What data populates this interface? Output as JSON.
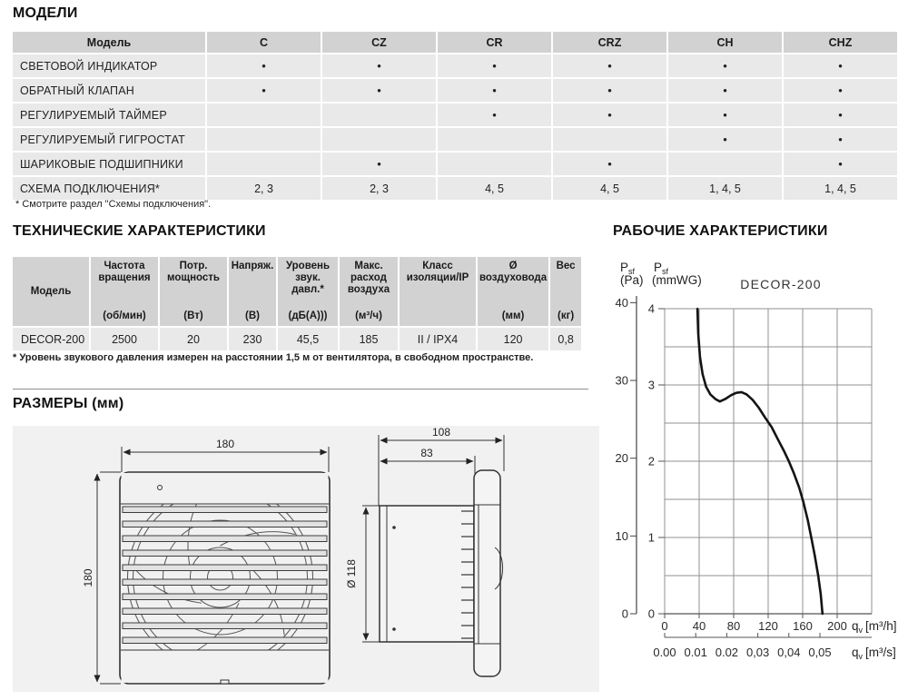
{
  "sections": {
    "models_title": "МОДЕЛИ",
    "tech_title": "ТЕХНИЧЕСКИЕ ХАРАКТЕРИСТИКИ",
    "dims_title": "РАЗМЕРЫ (мм)",
    "work_title": "РАБОЧИЕ ХАРАКТЕРИСТИКИ"
  },
  "models_table": {
    "header": [
      "Модель",
      "C",
      "CZ",
      "CR",
      "CRZ",
      "CH",
      "CHZ"
    ],
    "rows": [
      {
        "label": "СВЕТОВОЙ ИНДИКАТОР",
        "cells": [
          "•",
          "•",
          "•",
          "•",
          "•",
          "•"
        ]
      },
      {
        "label": "ОБРАТНЫЙ КЛАПАН",
        "cells": [
          "•",
          "•",
          "•",
          "•",
          "•",
          "•"
        ]
      },
      {
        "label": "РЕГУЛИРУЕМЫЙ ТАЙМЕР",
        "cells": [
          "",
          "",
          "•",
          "•",
          "•",
          "•"
        ]
      },
      {
        "label": "РЕГУЛИРУЕМЫЙ ГИГРОСТАТ",
        "cells": [
          "",
          "",
          "",
          "",
          "•",
          "•"
        ]
      },
      {
        "label": "ШАРИКОВЫЕ ПОДШИПНИКИ",
        "cells": [
          "",
          "•",
          "",
          "•",
          "",
          "•"
        ]
      },
      {
        "label": "СХЕМА ПОДКЛЮЧЕНИЯ*",
        "cells": [
          "2, 3",
          "2, 3",
          "4, 5",
          "4, 5",
          "1, 4, 5",
          "1, 4, 5"
        ]
      }
    ]
  },
  "notes": {
    "models": "* Смотрите раздел \"Схемы подключения\".",
    "tech": "* Уровень звукового давления измерен на расстоянии 1,5 м от вентилятора, в свободном пространстве."
  },
  "tech_table": {
    "columns": [
      {
        "name": "Модель",
        "unit": ""
      },
      {
        "name": "Частота вращения",
        "unit": "(об/мин)"
      },
      {
        "name": "Потр. мощность",
        "unit": "(Вт)"
      },
      {
        "name": "Напряж.",
        "unit": "(В)"
      },
      {
        "name": "Уровень звук. давл.*",
        "unit": "(дБ(А)))"
      },
      {
        "name": "Макс. расход воздуха",
        "unit": "(м³/ч)"
      },
      {
        "name": "Класс изоляции/IP",
        "unit": ""
      },
      {
        "name": "Ø воздуховода",
        "unit": "(мм)"
      },
      {
        "name": "Вес",
        "unit": "(кг)"
      }
    ],
    "row": [
      "DECOR-200",
      "2500",
      "20",
      "230",
      "45,5",
      "185",
      "II / IPX4",
      "120",
      "0,8"
    ]
  },
  "dimensions": {
    "front_width": "180",
    "front_height": "180",
    "depth_total": "108",
    "depth_duct": "83",
    "duct_diameter": "Ø 118"
  },
  "chart_data": {
    "type": "line",
    "title": "DECOR-200",
    "grid": true,
    "legend": false,
    "y_axis_pa": {
      "label_sym": "P",
      "label_sub": "sf",
      "unit": "(Pa)",
      "ticks": [
        0,
        10,
        20,
        30,
        40
      ],
      "range": [
        0,
        40
      ]
    },
    "y_axis_mmwg": {
      "label_sym": "P",
      "label_sub": "sf",
      "unit": "(mmWG)",
      "ticks": [
        0,
        1,
        2,
        3,
        4
      ],
      "grid_step": 0.5,
      "range": [
        0,
        4
      ]
    },
    "x_axis_m3h": {
      "label_sym": "q",
      "label_sub": "v",
      "unit": "[m³/h]",
      "ticks": [
        0,
        40,
        80,
        120,
        160,
        200
      ],
      "grid_step": 40,
      "range": [
        0,
        240
      ]
    },
    "x_axis_m3s": {
      "label_sym": "q",
      "label_sub": "v",
      "unit": "[m³/s]",
      "tick_labels": [
        "0.00",
        "0.01",
        "0.02",
        "0,03",
        "0,04",
        "0,05"
      ],
      "tick_step_m3h": 36,
      "range": [
        0,
        0.05
      ]
    },
    "series": [
      {
        "name": "DECOR-200",
        "points_m3h_pa": [
          [
            38,
            39.2
          ],
          [
            39,
            36
          ],
          [
            41,
            33
          ],
          [
            44,
            30.8
          ],
          [
            48,
            29.2
          ],
          [
            53,
            28.2
          ],
          [
            59,
            27.6
          ],
          [
            64,
            27.3
          ],
          [
            70,
            27.6
          ],
          [
            77,
            28.1
          ],
          [
            83,
            28.4
          ],
          [
            89,
            28.5
          ],
          [
            95,
            28.2
          ],
          [
            102,
            27.5
          ],
          [
            109,
            26.5
          ],
          [
            116,
            25.3
          ],
          [
            124,
            24.0
          ],
          [
            131,
            22.5
          ],
          [
            138,
            21.0
          ],
          [
            144,
            19.6
          ],
          [
            150,
            18.0
          ],
          [
            156,
            16.2
          ],
          [
            161,
            14.3
          ],
          [
            166,
            12.0
          ],
          [
            170,
            9.8
          ],
          [
            174,
            7.5
          ],
          [
            178,
            4.9
          ],
          [
            181,
            2.5
          ],
          [
            183,
            0
          ]
        ]
      }
    ]
  }
}
